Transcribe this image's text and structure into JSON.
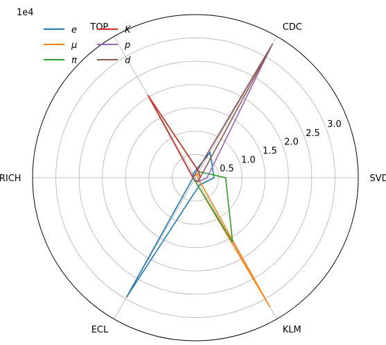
{
  "chart_data": {
    "type": "radar",
    "axes": [
      "SVD",
      "CDC",
      "TOP",
      "ARICH",
      "ECL",
      "KLM"
    ],
    "axis_angles_deg": [
      0,
      60,
      120,
      180,
      240,
      300
    ],
    "r_scale_label": "1e4",
    "r_ticks": [
      {
        "value": 0.5,
        "label": "0.5"
      },
      {
        "value": 1.0,
        "label": "1.0"
      },
      {
        "value": 1.5,
        "label": "1.5"
      },
      {
        "value": 2.0,
        "label": "2.0"
      },
      {
        "value": 2.5,
        "label": "2.5"
      },
      {
        "value": 3.0,
        "label": "3.0"
      }
    ],
    "rlim": [
      0,
      3.5
    ],
    "grid": true,
    "legend_position": "top-left",
    "series": [
      {
        "name": "e",
        "color": "#1f77b4",
        "values": [
          0.4,
          0.63,
          0.1,
          0.05,
          2.96,
          0.18
        ]
      },
      {
        "name": "μ",
        "color": "#ff7f0e",
        "values": [
          0.05,
          0.1,
          0.05,
          0.05,
          0.05,
          3.2
        ]
      },
      {
        "name": "π",
        "color": "#2ca02c",
        "values": [
          0.65,
          0.15,
          2.0,
          0.05,
          0.05,
          1.6
        ]
      },
      {
        "name": "K",
        "color": "#d62728",
        "values": [
          0.1,
          0.15,
          2.05,
          0.05,
          0.05,
          0.1
        ]
      },
      {
        "name": "p",
        "color": "#9467bd",
        "values": [
          0.25,
          3.3,
          0.05,
          0.05,
          0.05,
          0.1
        ]
      },
      {
        "name": "d",
        "color": "#8c564b",
        "values": [
          0.1,
          3.32,
          0.05,
          0.05,
          0.05,
          0.1
        ]
      }
    ]
  }
}
